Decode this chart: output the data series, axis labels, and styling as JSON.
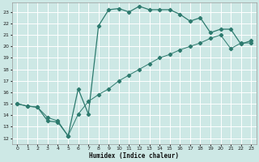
{
  "xlabel": "Humidex (Indice chaleur)",
  "background_color": "#cde8e5",
  "grid_color": "#ffffff",
  "line_color": "#2d7a6e",
  "xlim": [
    -0.5,
    23.5
  ],
  "ylim": [
    11.5,
    23.8
  ],
  "xticks": [
    0,
    1,
    2,
    3,
    4,
    5,
    6,
    7,
    8,
    9,
    10,
    11,
    12,
    13,
    14,
    15,
    16,
    17,
    18,
    19,
    20,
    21,
    22,
    23
  ],
  "yticks": [
    12,
    13,
    14,
    15,
    16,
    17,
    18,
    19,
    20,
    21,
    22,
    23
  ],
  "line_curved_x": [
    0,
    1,
    2,
    3,
    4,
    5,
    6,
    7,
    8,
    9,
    10,
    11,
    12,
    13,
    14,
    15,
    16,
    17,
    18,
    19,
    20,
    21,
    22,
    23
  ],
  "line_curved_y": [
    15.0,
    14.8,
    14.7,
    13.5,
    13.4,
    12.2,
    16.3,
    14.1,
    21.8,
    23.2,
    23.3,
    23.0,
    23.5,
    23.2,
    23.2,
    23.2,
    22.8,
    22.2,
    22.5,
    21.2,
    21.5,
    21.5,
    20.2,
    20.5
  ],
  "line_straight_x": [
    0,
    1,
    2,
    3,
    4,
    5,
    6,
    7,
    8,
    9,
    10,
    11,
    12,
    13,
    14,
    15,
    16,
    17,
    18,
    19,
    20,
    21,
    22,
    23
  ],
  "line_straight_y": [
    15.0,
    14.8,
    14.7,
    13.8,
    13.5,
    12.2,
    14.1,
    15.2,
    15.8,
    16.3,
    17.0,
    17.5,
    18.0,
    18.5,
    19.0,
    19.3,
    19.7,
    20.0,
    20.3,
    20.7,
    21.0,
    19.8,
    20.3,
    20.3
  ]
}
